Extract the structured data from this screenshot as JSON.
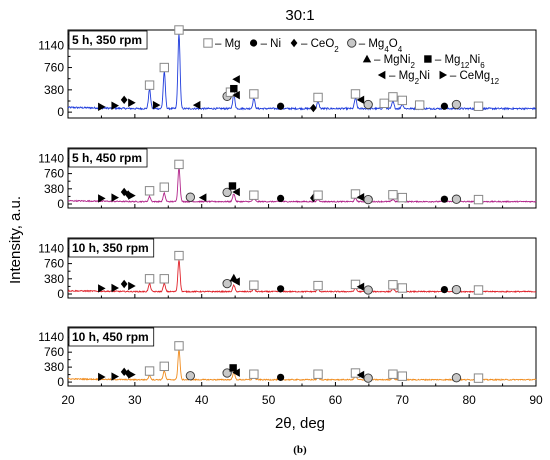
{
  "figure": {
    "title": "30:1",
    "caption": "(b)"
  },
  "chart_data": {
    "type": "line",
    "xlabel": "2θ, deg",
    "ylabel": "Intensity, a.u.",
    "xlim": [
      20,
      90
    ],
    "x_ticks": [
      20,
      30,
      40,
      50,
      60,
      70,
      80,
      90
    ],
    "ylim": [
      -100,
      1400
    ],
    "y_ticks": [
      0,
      380,
      760,
      1140
    ],
    "grid": false,
    "legend_position": "top-right, inside top panel",
    "legend": [
      {
        "marker": "open-square",
        "label": "– Mg"
      },
      {
        "marker": "filled-circle",
        "label": "– Ni"
      },
      {
        "marker": "filled-diamond",
        "label": "– CeO",
        "sub": "2"
      },
      {
        "marker": "grey-circle",
        "label": "– Mg",
        "sub": "4",
        "label2": "O",
        "sub2": "4"
      },
      {
        "marker": "filled-up-triangle",
        "label": "– MgNi",
        "sub": "2"
      },
      {
        "marker": "filled-square",
        "label": "– Mg",
        "sub": "12",
        "label2": "Ni",
        "sub2": "6"
      },
      {
        "marker": "left-triangle",
        "label": "– Mg",
        "sub": "2",
        "label2": "Ni"
      },
      {
        "marker": "right-triangle",
        "label": "– CeMg",
        "sub": "12"
      }
    ],
    "series": [
      {
        "name": "5 h, 350 rpm",
        "color": "#1f3cdc",
        "baseline": 60,
        "peaks": [
          [
            32.2,
            330
          ],
          [
            34.4,
            630
          ],
          [
            36.6,
            1280
          ],
          [
            44.8,
            250
          ],
          [
            47.8,
            170
          ],
          [
            57.4,
            120
          ],
          [
            63.0,
            180
          ],
          [
            67.3,
            60
          ],
          [
            68.6,
            120
          ],
          [
            70.0,
            80
          ]
        ],
        "markers": [
          {
            "type": "right-triangle",
            "x": 25.0,
            "y": 90
          },
          {
            "type": "right-triangle",
            "x": 27.0,
            "y": 110
          },
          {
            "type": "filled-diamond",
            "x": 28.4,
            "y": 210
          },
          {
            "type": "right-triangle",
            "x": 29.5,
            "y": 160
          },
          {
            "type": "open-square",
            "x": 32.2,
            "y": 460
          },
          {
            "type": "right-triangle",
            "x": 33.2,
            "y": 120
          },
          {
            "type": "open-square",
            "x": 34.4,
            "y": 760
          },
          {
            "type": "open-square",
            "x": 36.6,
            "y": 1400
          },
          {
            "type": "left-triangle",
            "x": 39.3,
            "y": 120
          },
          {
            "type": "grey-circle",
            "x": 43.8,
            "y": 270
          },
          {
            "type": "open-square",
            "x": 44.3,
            "y": 340
          },
          {
            "type": "filled-square",
            "x": 44.8,
            "y": 400
          },
          {
            "type": "left-triangle",
            "x": 45.2,
            "y": 560
          },
          {
            "type": "left-triangle",
            "x": 45.2,
            "y": 290
          },
          {
            "type": "open-square",
            "x": 47.8,
            "y": 310
          },
          {
            "type": "filled-circle",
            "x": 51.8,
            "y": 100
          },
          {
            "type": "filled-diamond",
            "x": 56.7,
            "y": 70
          },
          {
            "type": "open-square",
            "x": 57.4,
            "y": 250
          },
          {
            "type": "open-square",
            "x": 63.0,
            "y": 310
          },
          {
            "type": "left-triangle",
            "x": 63.8,
            "y": 210
          },
          {
            "type": "grey-circle",
            "x": 64.9,
            "y": 130
          },
          {
            "type": "open-square",
            "x": 67.3,
            "y": 150
          },
          {
            "type": "open-square",
            "x": 68.6,
            "y": 260
          },
          {
            "type": "open-square",
            "x": 70.0,
            "y": 200
          },
          {
            "type": "open-square",
            "x": 72.6,
            "y": 120
          },
          {
            "type": "filled-circle",
            "x": 76.3,
            "y": 100
          },
          {
            "type": "grey-circle",
            "x": 78.1,
            "y": 130
          },
          {
            "type": "open-square",
            "x": 81.4,
            "y": 100
          }
        ]
      },
      {
        "name": "5 h, 450 rpm",
        "color": "#b1248a",
        "baseline": 60,
        "peaks": [
          [
            32.2,
            130
          ],
          [
            34.4,
            210
          ],
          [
            36.6,
            850
          ],
          [
            44.8,
            200
          ],
          [
            47.8,
            110
          ],
          [
            57.4,
            60
          ],
          [
            63.0,
            80
          ],
          [
            68.6,
            60
          ],
          [
            70.0,
            40
          ]
        ],
        "markers": [
          {
            "type": "right-triangle",
            "x": 25.0,
            "y": 140
          },
          {
            "type": "right-triangle",
            "x": 27.0,
            "y": 160
          },
          {
            "type": "filled-diamond",
            "x": 28.4,
            "y": 300
          },
          {
            "type": "filled-diamond",
            "x": 29.0,
            "y": 240
          },
          {
            "type": "right-triangle",
            "x": 29.5,
            "y": 210
          },
          {
            "type": "open-square",
            "x": 32.2,
            "y": 330
          },
          {
            "type": "open-square",
            "x": 34.4,
            "y": 420
          },
          {
            "type": "open-square",
            "x": 36.6,
            "y": 990
          },
          {
            "type": "grey-circle",
            "x": 38.3,
            "y": 170
          },
          {
            "type": "left-triangle",
            "x": 40.2,
            "y": 160
          },
          {
            "type": "grey-circle",
            "x": 43.8,
            "y": 290
          },
          {
            "type": "filled-square",
            "x": 44.6,
            "y": 450
          },
          {
            "type": "left-triangle",
            "x": 45.2,
            "y": 300
          },
          {
            "type": "open-square",
            "x": 47.8,
            "y": 220
          },
          {
            "type": "filled-circle",
            "x": 51.8,
            "y": 140
          },
          {
            "type": "filled-diamond",
            "x": 56.7,
            "y": 150
          },
          {
            "type": "open-square",
            "x": 57.4,
            "y": 220
          },
          {
            "type": "open-square",
            "x": 63.0,
            "y": 250
          },
          {
            "type": "left-triangle",
            "x": 63.8,
            "y": 170
          },
          {
            "type": "grey-circle",
            "x": 64.9,
            "y": 110
          },
          {
            "type": "open-square",
            "x": 68.6,
            "y": 230
          },
          {
            "type": "open-square",
            "x": 70.0,
            "y": 160
          },
          {
            "type": "filled-circle",
            "x": 76.3,
            "y": 120
          },
          {
            "type": "grey-circle",
            "x": 78.1,
            "y": 120
          },
          {
            "type": "open-square",
            "x": 81.4,
            "y": 110
          }
        ]
      },
      {
        "name": "10 h, 350 rpm",
        "color": "#e0222a",
        "baseline": 60,
        "peaks": [
          [
            32.2,
            200
          ],
          [
            34.4,
            200
          ],
          [
            36.6,
            800
          ],
          [
            44.8,
            160
          ],
          [
            47.8,
            80
          ],
          [
            57.4,
            60
          ],
          [
            63.0,
            100
          ],
          [
            68.6,
            80
          ],
          [
            70.0,
            50
          ]
        ],
        "markers": [
          {
            "type": "right-triangle",
            "x": 25.0,
            "y": 140
          },
          {
            "type": "right-triangle",
            "x": 27.0,
            "y": 150
          },
          {
            "type": "filled-diamond",
            "x": 28.4,
            "y": 250
          },
          {
            "type": "right-triangle",
            "x": 29.5,
            "y": 200
          },
          {
            "type": "open-square",
            "x": 32.2,
            "y": 380
          },
          {
            "type": "open-square",
            "x": 34.4,
            "y": 380
          },
          {
            "type": "open-square",
            "x": 36.6,
            "y": 960
          },
          {
            "type": "grey-circle",
            "x": 43.8,
            "y": 260
          },
          {
            "type": "filled-up-triangle",
            "x": 44.8,
            "y": 400
          },
          {
            "type": "left-triangle",
            "x": 45.2,
            "y": 310
          },
          {
            "type": "open-square",
            "x": 47.8,
            "y": 220
          },
          {
            "type": "filled-circle",
            "x": 51.8,
            "y": 130
          },
          {
            "type": "open-square",
            "x": 57.4,
            "y": 210
          },
          {
            "type": "open-square",
            "x": 63.0,
            "y": 240
          },
          {
            "type": "left-triangle",
            "x": 63.8,
            "y": 180
          },
          {
            "type": "grey-circle",
            "x": 64.9,
            "y": 100
          },
          {
            "type": "open-square",
            "x": 68.6,
            "y": 230
          },
          {
            "type": "open-square",
            "x": 70.0,
            "y": 150
          },
          {
            "type": "filled-circle",
            "x": 76.3,
            "y": 110
          },
          {
            "type": "grey-circle",
            "x": 78.1,
            "y": 110
          },
          {
            "type": "open-square",
            "x": 81.4,
            "y": 100
          }
        ]
      },
      {
        "name": "10 h, 450 rpm",
        "color": "#f08c1e",
        "baseline": 60,
        "peaks": [
          [
            32.2,
            110
          ],
          [
            34.4,
            230
          ],
          [
            36.6,
            760
          ],
          [
            44.8,
            200
          ],
          [
            47.8,
            90
          ],
          [
            57.4,
            70
          ],
          [
            63.0,
            100
          ],
          [
            68.6,
            80
          ],
          [
            70.0,
            40
          ]
        ],
        "markers": [
          {
            "type": "right-triangle",
            "x": 25.0,
            "y": 130
          },
          {
            "type": "right-triangle",
            "x": 27.0,
            "y": 140
          },
          {
            "type": "filled-diamond",
            "x": 28.4,
            "y": 260
          },
          {
            "type": "filled-diamond",
            "x": 29.0,
            "y": 220
          },
          {
            "type": "right-triangle",
            "x": 29.5,
            "y": 190
          },
          {
            "type": "open-square",
            "x": 32.2,
            "y": 280
          },
          {
            "type": "open-square",
            "x": 34.4,
            "y": 400
          },
          {
            "type": "open-square",
            "x": 36.6,
            "y": 920
          },
          {
            "type": "grey-circle",
            "x": 38.3,
            "y": 160
          },
          {
            "type": "grey-circle",
            "x": 43.8,
            "y": 230
          },
          {
            "type": "filled-square",
            "x": 44.7,
            "y": 360
          },
          {
            "type": "left-triangle",
            "x": 45.2,
            "y": 240
          },
          {
            "type": "open-square",
            "x": 47.8,
            "y": 200
          },
          {
            "type": "filled-circle",
            "x": 51.8,
            "y": 120
          },
          {
            "type": "open-square",
            "x": 57.4,
            "y": 200
          },
          {
            "type": "open-square",
            "x": 63.0,
            "y": 230
          },
          {
            "type": "left-triangle",
            "x": 63.8,
            "y": 180
          },
          {
            "type": "grey-circle",
            "x": 64.9,
            "y": 100
          },
          {
            "type": "open-square",
            "x": 68.6,
            "y": 200
          },
          {
            "type": "open-square",
            "x": 70.0,
            "y": 150
          },
          {
            "type": "grey-circle",
            "x": 78.1,
            "y": 110
          },
          {
            "type": "open-square",
            "x": 81.4,
            "y": 100
          }
        ]
      }
    ]
  }
}
